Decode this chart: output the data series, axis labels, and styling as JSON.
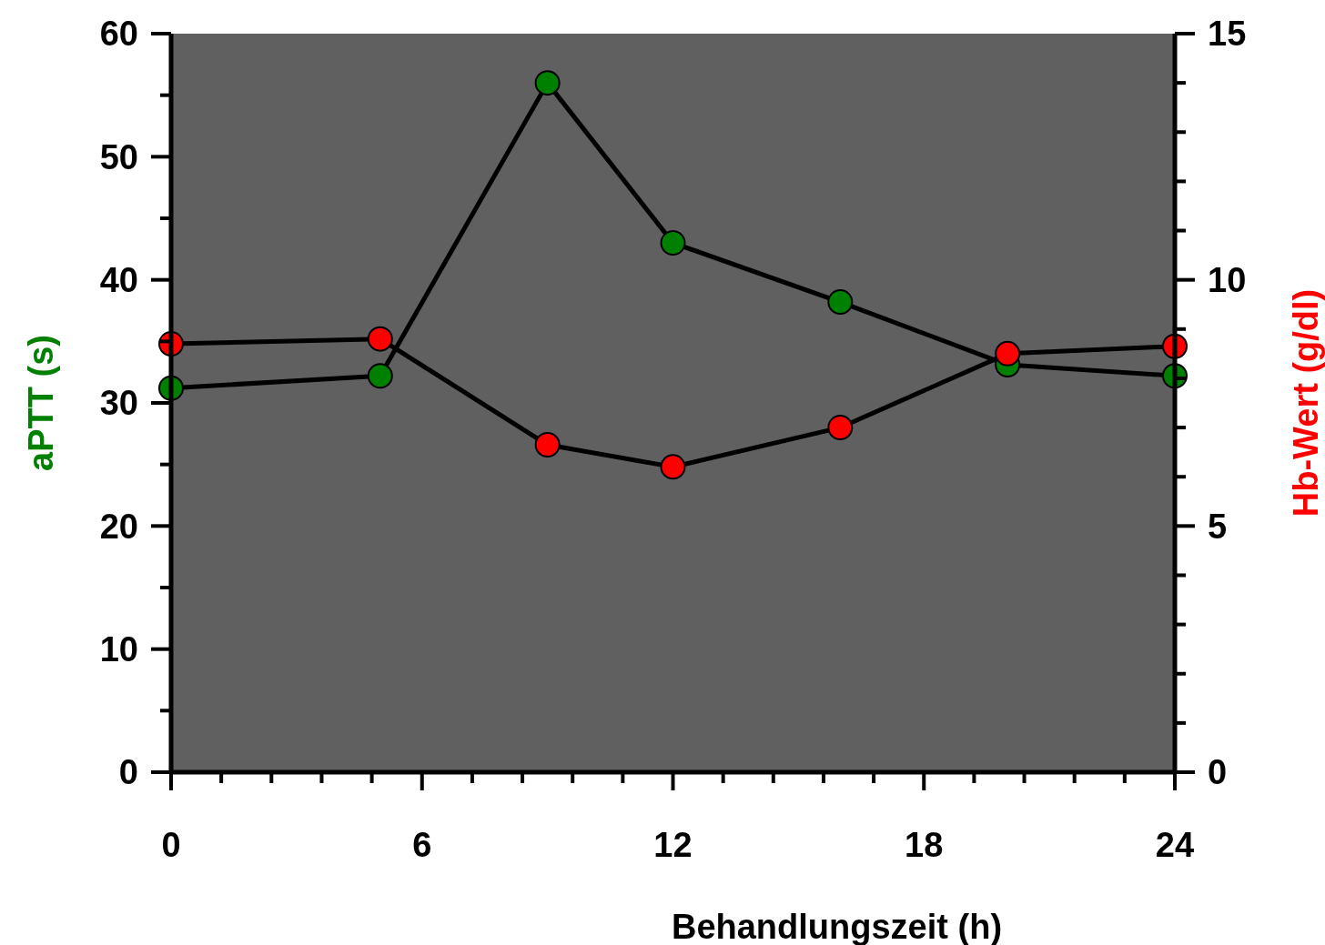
{
  "chart_data": {
    "type": "line",
    "xlabel": "Behandlungszeit (h)",
    "ylabel": "aPTT (s)",
    "y2label": "Hb-Wert (g/dl)",
    "xlim": [
      0,
      24
    ],
    "xticks": [
      0,
      {
        "value": 1.2,
        "label": null
      },
      {
        "value": 2.4,
        "label": null
      },
      {
        "value": 3.6,
        "label": null
      },
      {
        "value": 4.8,
        "label": null
      },
      6,
      {
        "value": 7.2,
        "label": null
      },
      {
        "value": 8.4,
        "label": null
      },
      {
        "value": 9.6,
        "label": null
      },
      {
        "value": 10.8,
        "label": null
      },
      12,
      {
        "value": 13.2,
        "label": null
      },
      {
        "value": 14.4,
        "label": null
      },
      {
        "value": 15.6,
        "label": null
      },
      {
        "value": 16.8,
        "label": null
      },
      18,
      {
        "value": 19.2,
        "label": null
      },
      {
        "value": 20.4,
        "label": null
      },
      {
        "value": 21.6,
        "label": null
      },
      {
        "value": 22.8,
        "label": null
      },
      24
    ],
    "ylim": [
      0,
      60
    ],
    "yticks": [
      0,
      {
        "value": 5,
        "label": null
      },
      10,
      {
        "value": 15,
        "label": null
      },
      20,
      {
        "value": 25,
        "label": null
      },
      30,
      {
        "value": 35,
        "label": null
      },
      40,
      {
        "value": 45,
        "label": null
      },
      50,
      {
        "value": 55,
        "label": null
      },
      60
    ],
    "y2lim": [
      0,
      15
    ],
    "y2ticks": [
      0,
      {
        "value": 1,
        "label": null
      },
      {
        "value": 2,
        "label": null
      },
      {
        "value": 3,
        "label": null
      },
      {
        "value": 4,
        "label": null
      },
      5,
      {
        "value": 6,
        "label": null
      },
      {
        "value": 7,
        "label": null
      },
      {
        "value": 8,
        "label": null
      },
      {
        "value": 9,
        "label": null
      },
      10,
      {
        "value": 11,
        "label": null
      },
      {
        "value": 12,
        "label": null
      },
      {
        "value": 13,
        "label": null
      },
      {
        "value": 14,
        "label": null
      },
      15
    ],
    "x": [
      0,
      5,
      9,
      12,
      16,
      20,
      24
    ],
    "marker": "circle",
    "line_style": "solid",
    "grid": false,
    "series": [
      {
        "color": "#008000",
        "values": [
          31.2,
          32.2,
          56.0,
          43.0,
          38.2,
          33.1,
          32.2
        ]
      },
      {
        "color": "#ff0000",
        "axis": "y2",
        "values": [
          8.7,
          8.8,
          6.65,
          6.2,
          7.0,
          8.5,
          8.65
        ]
      }
    ]
  }
}
